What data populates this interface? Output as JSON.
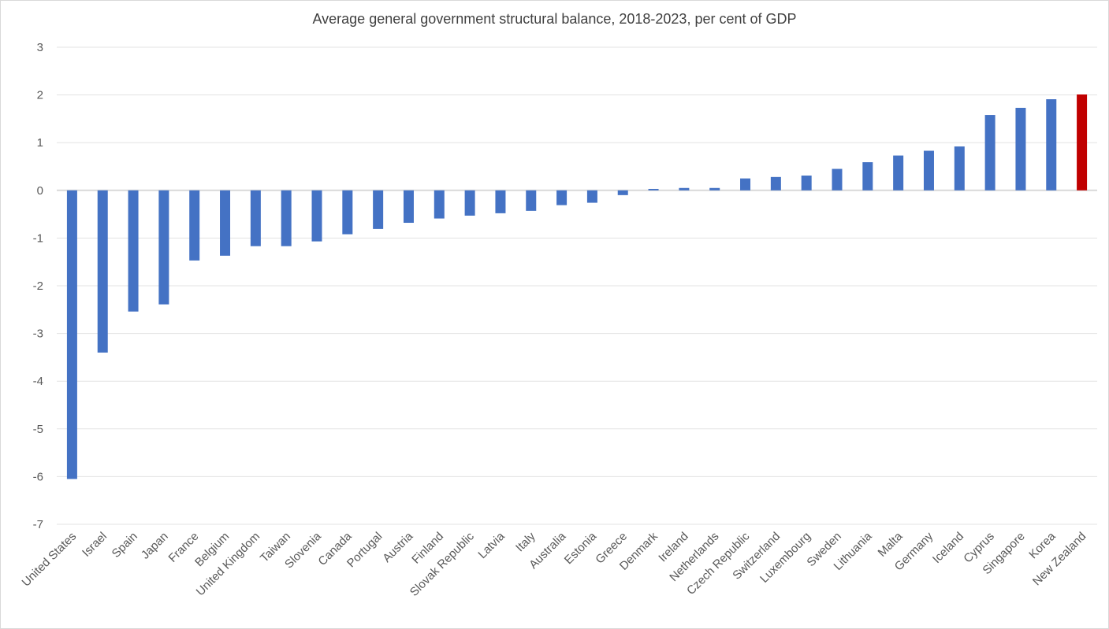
{
  "chart_data": {
    "type": "bar",
    "title": "Average general government structural balance, 2018-2023,  per cent of GDP",
    "xlabel": "",
    "ylabel": "",
    "ylim": [
      -7,
      3
    ],
    "yticks": [
      3,
      2,
      1,
      0,
      -1,
      -2,
      -3,
      -4,
      -5,
      -6,
      -7
    ],
    "grid": true,
    "legend": "none",
    "colors": {
      "default": "#4472c4",
      "highlight": "#c00000"
    },
    "highlight": "New Zealand",
    "categories": [
      "United States",
      "Israel",
      "Spain",
      "Japan",
      "France",
      "Belgium",
      "United Kingdom",
      "Taiwan",
      "Slovenia",
      "Canada",
      "Portugal",
      "Austria",
      "Finland",
      "Slovak Republic",
      "Latvia",
      "Italy",
      "Australia",
      "Estonia",
      "Greece",
      "Denmark",
      "Ireland",
      "Netherlands",
      "Czech Republic",
      "Switzerland",
      "Luxembourg",
      "Sweden",
      "Lithuania",
      "Malta",
      "Germany",
      "Iceland",
      "Cyprus",
      "Singapore",
      "Korea",
      "New Zealand"
    ],
    "values": [
      -6.05,
      -3.4,
      -2.54,
      -2.39,
      -1.47,
      -1.37,
      -1.17,
      -1.17,
      -1.07,
      -0.92,
      -0.81,
      -0.68,
      -0.59,
      -0.53,
      -0.48,
      -0.43,
      -0.31,
      -0.26,
      -0.1,
      0.03,
      0.05,
      0.05,
      0.25,
      0.28,
      0.31,
      0.45,
      0.59,
      0.73,
      0.83,
      0.92,
      1.58,
      1.73,
      1.91,
      2.01
    ]
  }
}
